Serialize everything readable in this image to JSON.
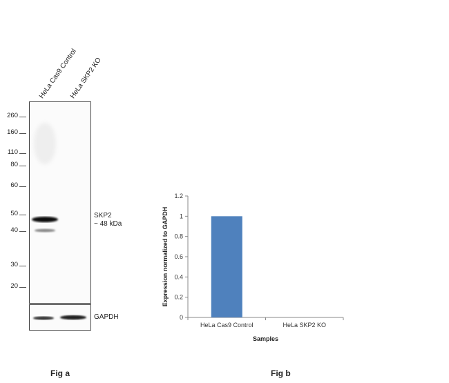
{
  "fig_a": {
    "label": "Fig a",
    "lanes": [
      "HeLa Cas9 Control",
      "HeLa SKP2 KO"
    ],
    "markers": [
      "260",
      "160",
      "110",
      "80",
      "60",
      "50",
      "40",
      "30",
      "20"
    ],
    "target_band": {
      "name": "SKP2",
      "size": "~ 48 kDa"
    },
    "loading_control": "GAPDH"
  },
  "fig_b": {
    "label": "Fig b"
  },
  "chart_data": {
    "type": "bar",
    "categories": [
      "HeLa Cas9 Control",
      "HeLa SKP2 KO"
    ],
    "values": [
      1,
      0
    ],
    "xlabel": "Samples",
    "ylabel": "Expression  normalized to GAPDH",
    "ylim": [
      0,
      1.2
    ],
    "yticks": [
      "0",
      "0.2",
      "0.4",
      "0.6",
      "0.8",
      "1",
      "1.2"
    ],
    "bar_color": "#4f81bd",
    "grid": false
  }
}
